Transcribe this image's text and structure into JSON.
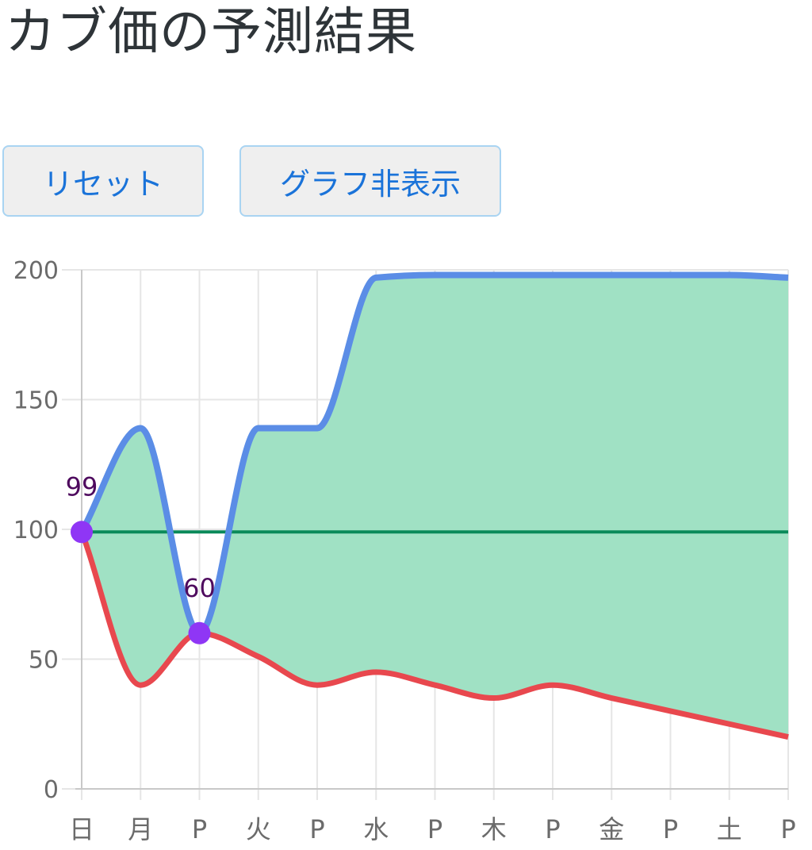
{
  "title": "カブ価の予測結果",
  "buttons": {
    "reset_label": "リセット",
    "toggle_graph_label": "グラフ非表示"
  },
  "colors": {
    "max_line": "#5b8de6",
    "min_line": "#e8484e",
    "band_fill": "#a0e1c4",
    "base_line": "#0b8a5a",
    "point": "#8f36f5",
    "point_label": "#4e0a5e",
    "grid": "#e6e6e6",
    "tick_text": "#6b6b6b"
  },
  "chart_data": {
    "type": "area",
    "title": "",
    "xlabel": "",
    "ylabel": "",
    "ylim": [
      0,
      200
    ],
    "yticks": [
      0,
      50,
      100,
      150,
      200
    ],
    "grid": true,
    "categories": [
      "日",
      "月",
      "P",
      "火",
      "P",
      "水",
      "P",
      "木",
      "P",
      "金",
      "P",
      "土",
      "P"
    ],
    "series": [
      {
        "role": "max",
        "values": [
          99,
          139,
          60,
          139,
          139,
          197,
          198,
          198,
          198,
          198,
          198,
          198,
          197
        ]
      },
      {
        "role": "min",
        "values": [
          99,
          40,
          60,
          51,
          40,
          45,
          40,
          35,
          40,
          35,
          30,
          25,
          20
        ]
      },
      {
        "role": "base",
        "values": [
          99,
          99,
          99,
          99,
          99,
          99,
          99,
          99,
          99,
          99,
          99,
          99,
          99
        ]
      }
    ],
    "points": [
      {
        "index": 0,
        "value": 99,
        "label": "99"
      },
      {
        "index": 2,
        "value": 60,
        "label": "60"
      }
    ]
  }
}
